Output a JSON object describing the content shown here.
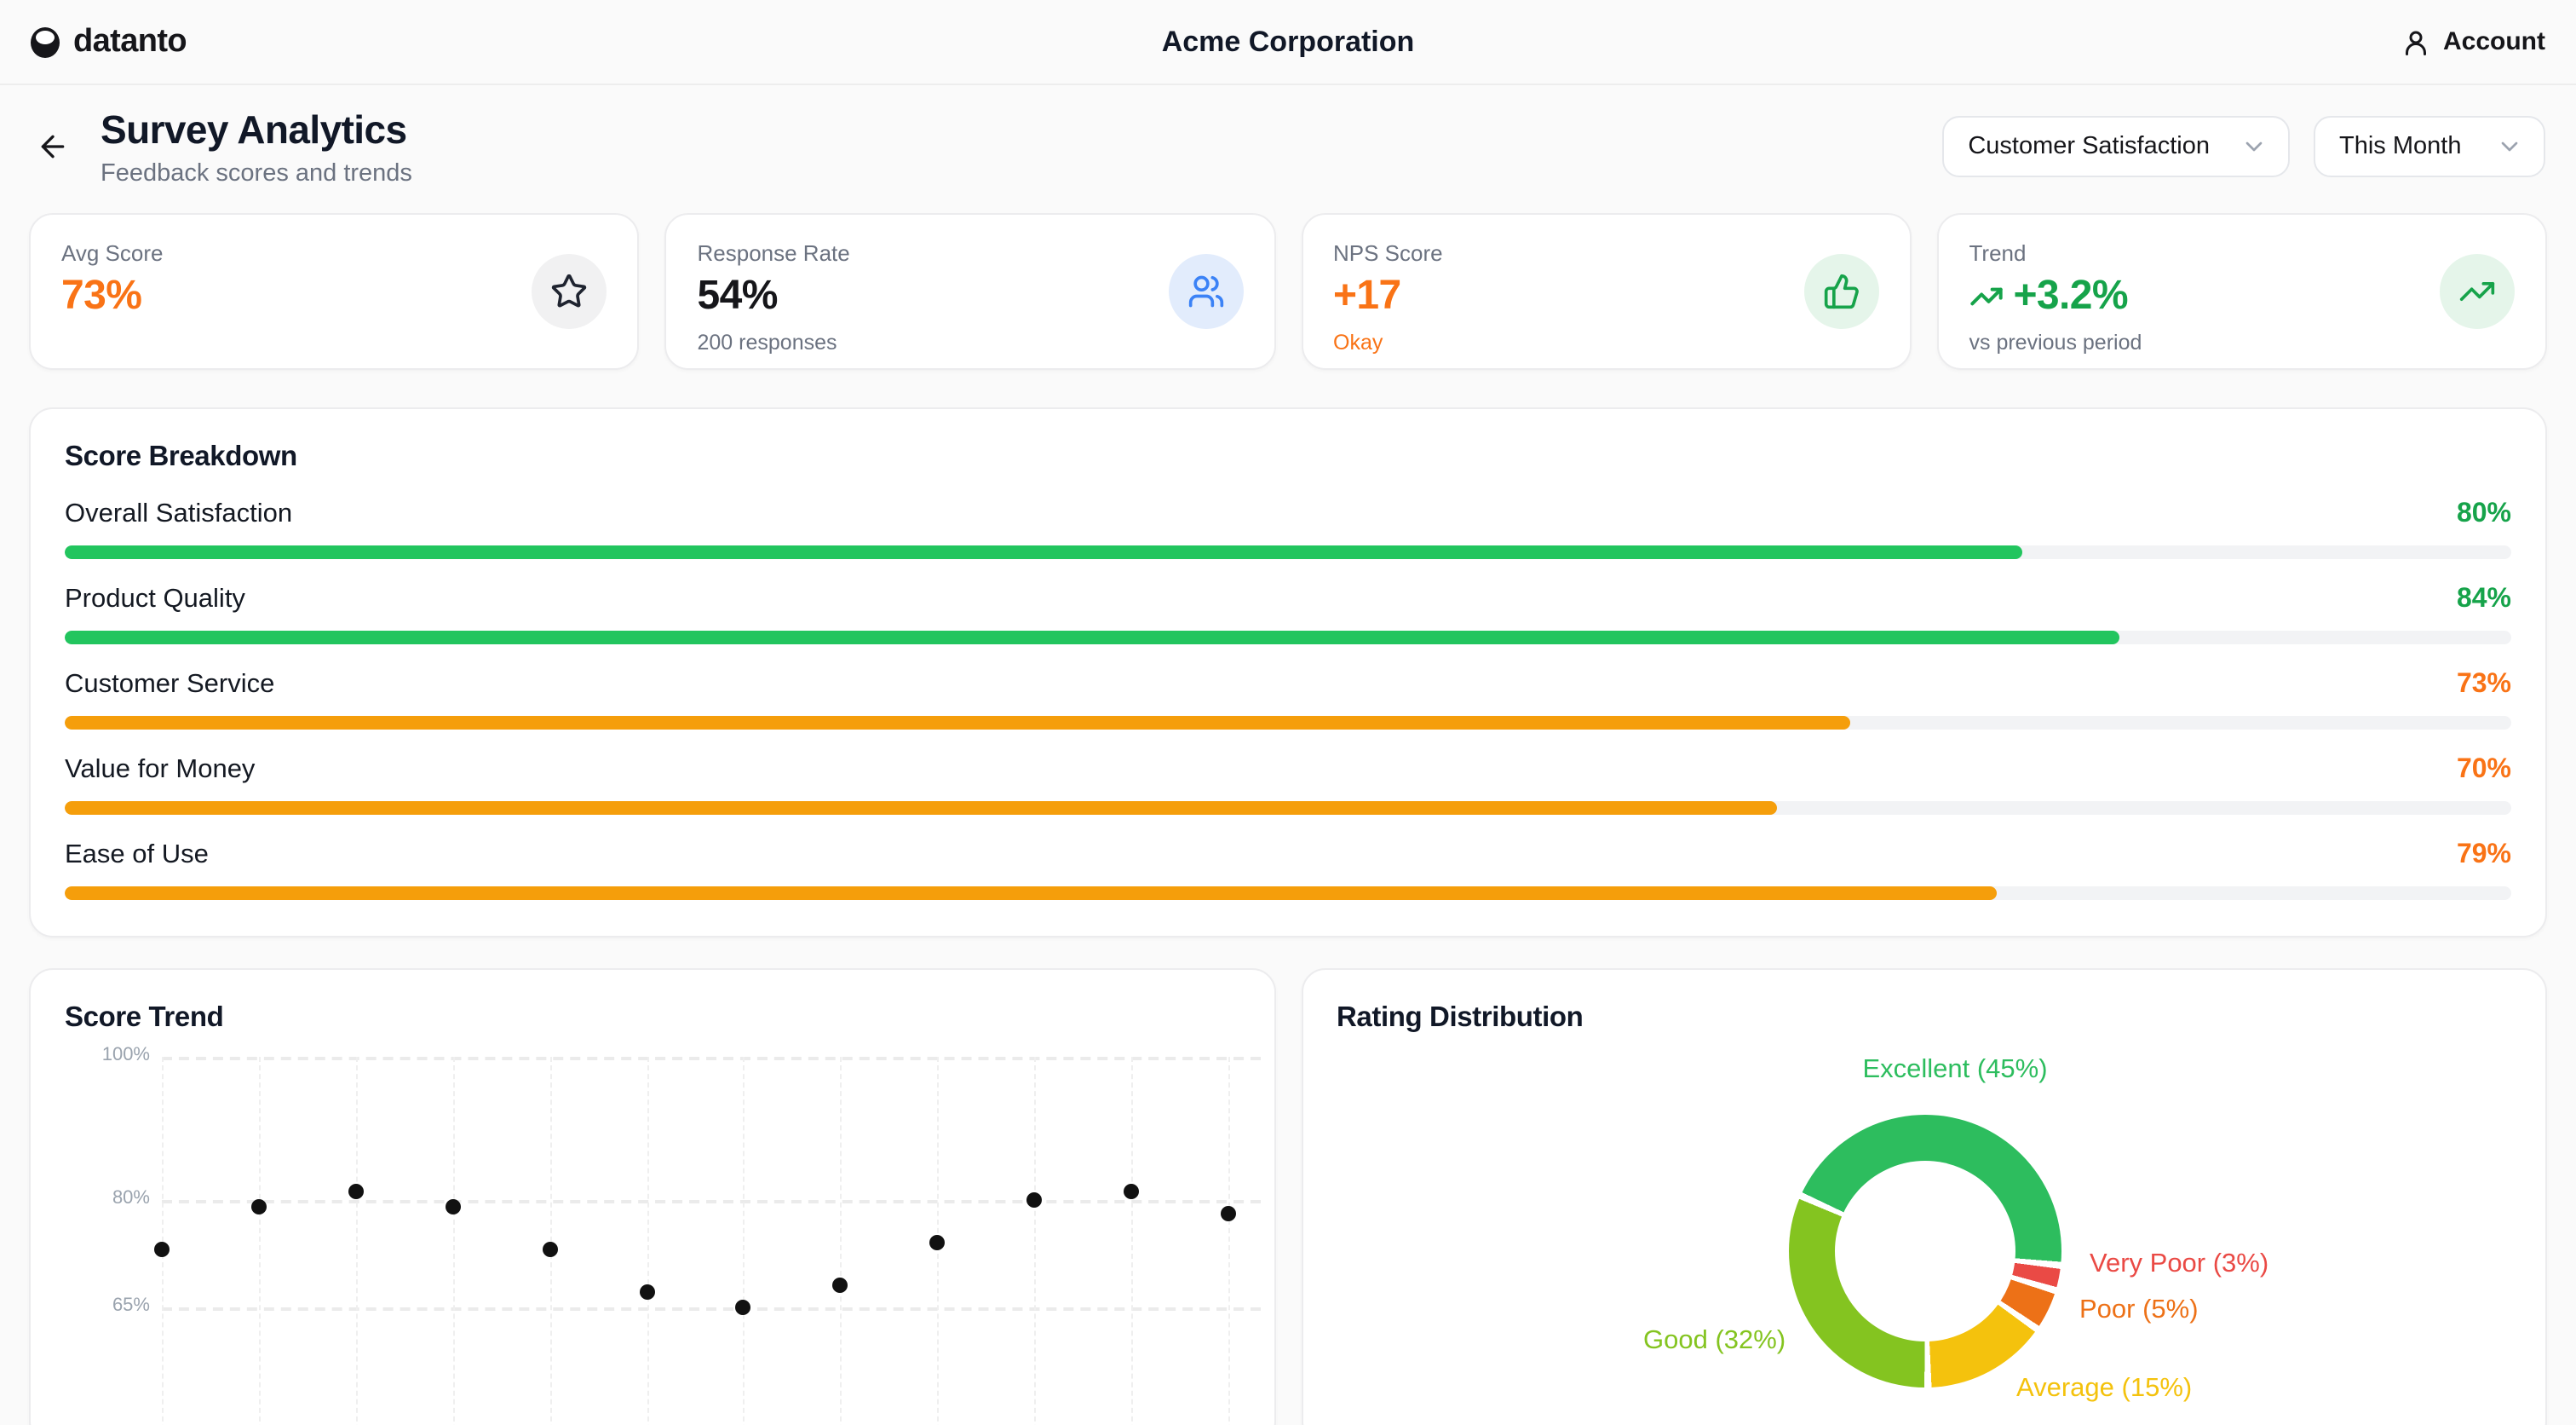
{
  "topbar": {
    "logo_text": "datanto",
    "company": "Acme Corporation",
    "account_label": "Account"
  },
  "page_header": {
    "title": "Survey Analytics",
    "subtitle": "Feedback scores and trends",
    "filters": [
      {
        "label": "Customer Satisfaction"
      },
      {
        "label": "This Month"
      }
    ]
  },
  "stats": [
    {
      "label": "Avg Score",
      "value": "73%",
      "sub": "",
      "value_color": "#f97316",
      "sub_color": "#6b7280",
      "icon": "star-icon",
      "icon_bg": "#f1f1f2",
      "icon_color": "#1f2430",
      "has_value_icon": false
    },
    {
      "label": "Response Rate",
      "value": "54%",
      "sub": "200 responses",
      "value_color": "#16161a",
      "sub_color": "#6b7280",
      "icon": "users-icon",
      "icon_bg": "#e2ecfc",
      "icon_color": "#3b82f6",
      "has_value_icon": false
    },
    {
      "label": "NPS Score",
      "value": "+17",
      "sub": "Okay",
      "value_color": "#f97316",
      "sub_color": "#f97316",
      "icon": "thumbs-up-icon",
      "icon_bg": "#e5f5ea",
      "icon_color": "#16a34a",
      "has_value_icon": false
    },
    {
      "label": "Trend",
      "value": "+3.2%",
      "sub": "vs previous period",
      "value_color": "#16a34a",
      "sub_color": "#6b7280",
      "icon": "trending-up-icon",
      "icon_bg": "#e5f5ea",
      "icon_color": "#16a34a",
      "has_value_icon": true
    }
  ],
  "breakdown": {
    "title": "Score Breakdown",
    "rows": [
      {
        "label": "Overall Satisfaction",
        "pct": 80,
        "pct_label": "80%",
        "bar_color": "#22c55e",
        "text_color": "#16a34a"
      },
      {
        "label": "Product Quality",
        "pct": 84,
        "pct_label": "84%",
        "bar_color": "#22c55e",
        "text_color": "#16a34a"
      },
      {
        "label": "Customer Service",
        "pct": 73,
        "pct_label": "73%",
        "bar_color": "#f59e0b",
        "text_color": "#f97316"
      },
      {
        "label": "Value for Money",
        "pct": 70,
        "pct_label": "70%",
        "bar_color": "#f59e0b",
        "text_color": "#f97316"
      },
      {
        "label": "Ease of Use",
        "pct": 79,
        "pct_label": "79%",
        "bar_color": "#f59e0b",
        "text_color": "#f97316"
      }
    ]
  },
  "chart_data": [
    {
      "type": "scatter",
      "title": "Score Trend",
      "x": [
        1,
        2,
        3,
        4,
        5,
        6,
        7,
        8,
        9,
        10,
        11,
        12
      ],
      "values": [
        73,
        79,
        81,
        79,
        73,
        67,
        65,
        68,
        74,
        80,
        81,
        78
      ],
      "yticks": [
        {
          "label": "100%",
          "value": 100
        },
        {
          "label": "80%",
          "value": 80
        },
        {
          "label": "65%",
          "value": 65
        }
      ],
      "ylim": [
        55,
        102
      ],
      "grid": "dashed",
      "point_color": "#111111"
    },
    {
      "type": "donut",
      "title": "Rating Distribution",
      "start_angle_deg": -66,
      "direction": "clockwise",
      "gap_deg": 3,
      "segments": [
        {
          "name": "Excellent",
          "label": "Excellent (45%)",
          "pct": 45,
          "color": "#2dbd5e"
        },
        {
          "name": "Very Poor",
          "label": "Very Poor (3%)",
          "pct": 3,
          "color": "#ea4a45"
        },
        {
          "name": "Poor",
          "label": "Poor (5%)",
          "pct": 5,
          "color": "#ed7117"
        },
        {
          "name": "Average",
          "label": "Average (15%)",
          "pct": 15,
          "color": "#f4c20d"
        },
        {
          "name": "Good",
          "label": "Good (32%)",
          "pct": 32,
          "color": "#84c420"
        }
      ]
    }
  ]
}
